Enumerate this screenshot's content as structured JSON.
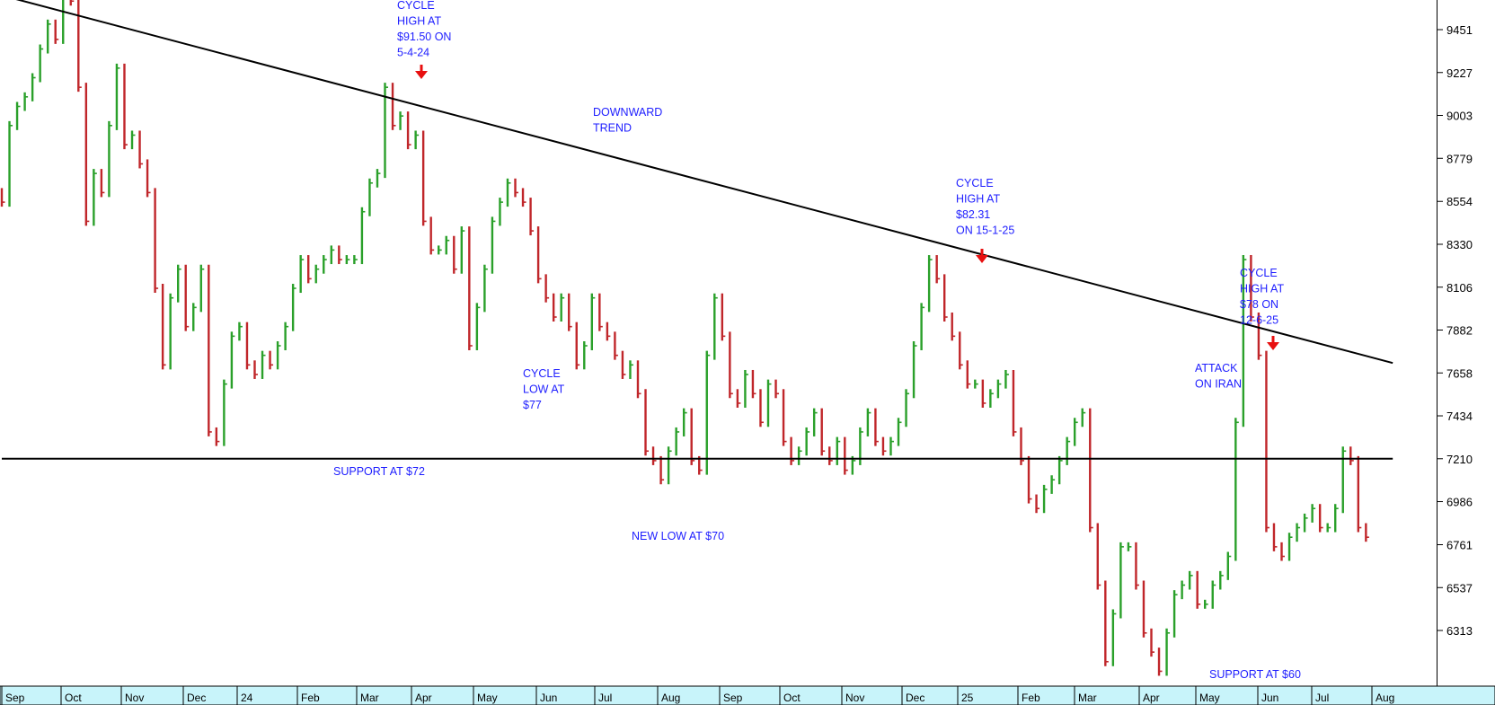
{
  "chart_data": {
    "type": "line",
    "title": "",
    "xlabel": "",
    "ylabel": "",
    "ylim": [
      6089,
      9675
    ],
    "y_ticks": [
      9451,
      9227,
      9003,
      8779,
      8554,
      8330,
      8106,
      7882,
      7658,
      7434,
      7210,
      6986,
      6761,
      6537,
      6313
    ],
    "x_ticks": [
      "Sep",
      "Oct",
      "Nov",
      "Dec",
      "24",
      "Feb",
      "Mar",
      "Apr",
      "May",
      "Jun",
      "Jul",
      "Aug",
      "Sep",
      "Oct",
      "Nov",
      "Dec",
      "25",
      "Feb",
      "Mar",
      "Apr",
      "May",
      "Jun",
      "Jul",
      "Aug"
    ],
    "grid": false,
    "colors": {
      "up": "#2aa02a",
      "down": "#c0262a",
      "annotation": "#1e1eff",
      "arrow": "#e81010",
      "axis_bg": "#c8f4fa"
    },
    "series": [
      {
        "values": [
          8550,
          8950,
          9050,
          9100,
          9200,
          9350,
          9480,
          9400,
          9700,
          9600,
          9150,
          8450,
          8700,
          8600,
          8950,
          9250,
          8850,
          8900,
          8750,
          8600,
          8100,
          7700,
          8050,
          8200,
          7900,
          8000,
          8200,
          7350,
          7300,
          7600,
          7850,
          7900,
          7700,
          7650,
          7750,
          7700,
          7800,
          7900,
          8100,
          8250,
          8150,
          8200,
          8250,
          8300,
          8250,
          8250,
          8250,
          8500,
          8650,
          8700,
          9150,
          8950,
          9000,
          8850,
          8900,
          8450,
          8300,
          8300,
          8350,
          8200,
          8400,
          7800,
          8000,
          8200,
          8450,
          8550,
          8650,
          8600,
          8550,
          8400,
          8150,
          8050,
          7950,
          8050,
          7900,
          7700,
          7800,
          8050,
          7900,
          7850,
          7750,
          7650,
          7700,
          7550,
          7250,
          7200,
          7100,
          7250,
          7350,
          7450,
          7200,
          7150,
          7750,
          8050,
          7850,
          7550,
          7500,
          7650,
          7550,
          7400,
          7600,
          7550,
          7300,
          7200,
          7250,
          7350,
          7450,
          7250,
          7200,
          7300,
          7150,
          7200,
          7350,
          7450,
          7300,
          7250,
          7300,
          7400,
          7550,
          7800,
          8000,
          8250,
          8150,
          7950,
          7850,
          7700,
          7600,
          7600,
          7500,
          7550,
          7600,
          7650,
          7350,
          7200,
          7000,
          6950,
          7050,
          7100,
          7200,
          7300,
          7400,
          7450,
          6850,
          6550,
          6150,
          6400,
          6750,
          6750,
          6550,
          6300,
          6200,
          6100,
          6300,
          6500,
          6550,
          6600,
          6450,
          6450,
          6550,
          6600,
          6700,
          7400,
          8250,
          7950,
          7750,
          6850,
          6750,
          6700,
          6800,
          6850,
          6900,
          6950,
          6850,
          6850,
          6950,
          7250,
          7200,
          6850,
          6800
        ]
      }
    ],
    "trendlines": [
      {
        "label": "DOWNWARD TREND",
        "from": [
          0,
          9630
        ],
        "to": [
          181.5,
          7710
        ]
      },
      {
        "label": "SUPPORT AT $72",
        "from": [
          0,
          7210
        ],
        "to": [
          181.5,
          7210
        ]
      }
    ],
    "annotations": [
      {
        "lines": [
          "CYCLE",
          "HIGH AT",
          "$91.50 ON",
          "5-4-24"
        ]
      },
      {
        "lines": [
          "DOWNWARD",
          "TREND"
        ]
      },
      {
        "lines": [
          "CYCLE",
          "HIGH AT",
          "$82.31",
          "ON 15-1-25"
        ]
      },
      {
        "lines": [
          "CYCLE",
          "HIGH AT",
          "$78 ON",
          "12-6-25"
        ]
      },
      {
        "lines": [
          "ATTACK",
          "ON IRAN"
        ]
      },
      {
        "lines": [
          "CYCLE",
          "LOW AT",
          "$77"
        ]
      },
      {
        "lines": [
          "SUPPORT AT $72"
        ]
      },
      {
        "lines": [
          "NEW LOW AT $70"
        ]
      },
      {
        "lines": [
          "SUPPORT AT $60"
        ]
      }
    ]
  }
}
